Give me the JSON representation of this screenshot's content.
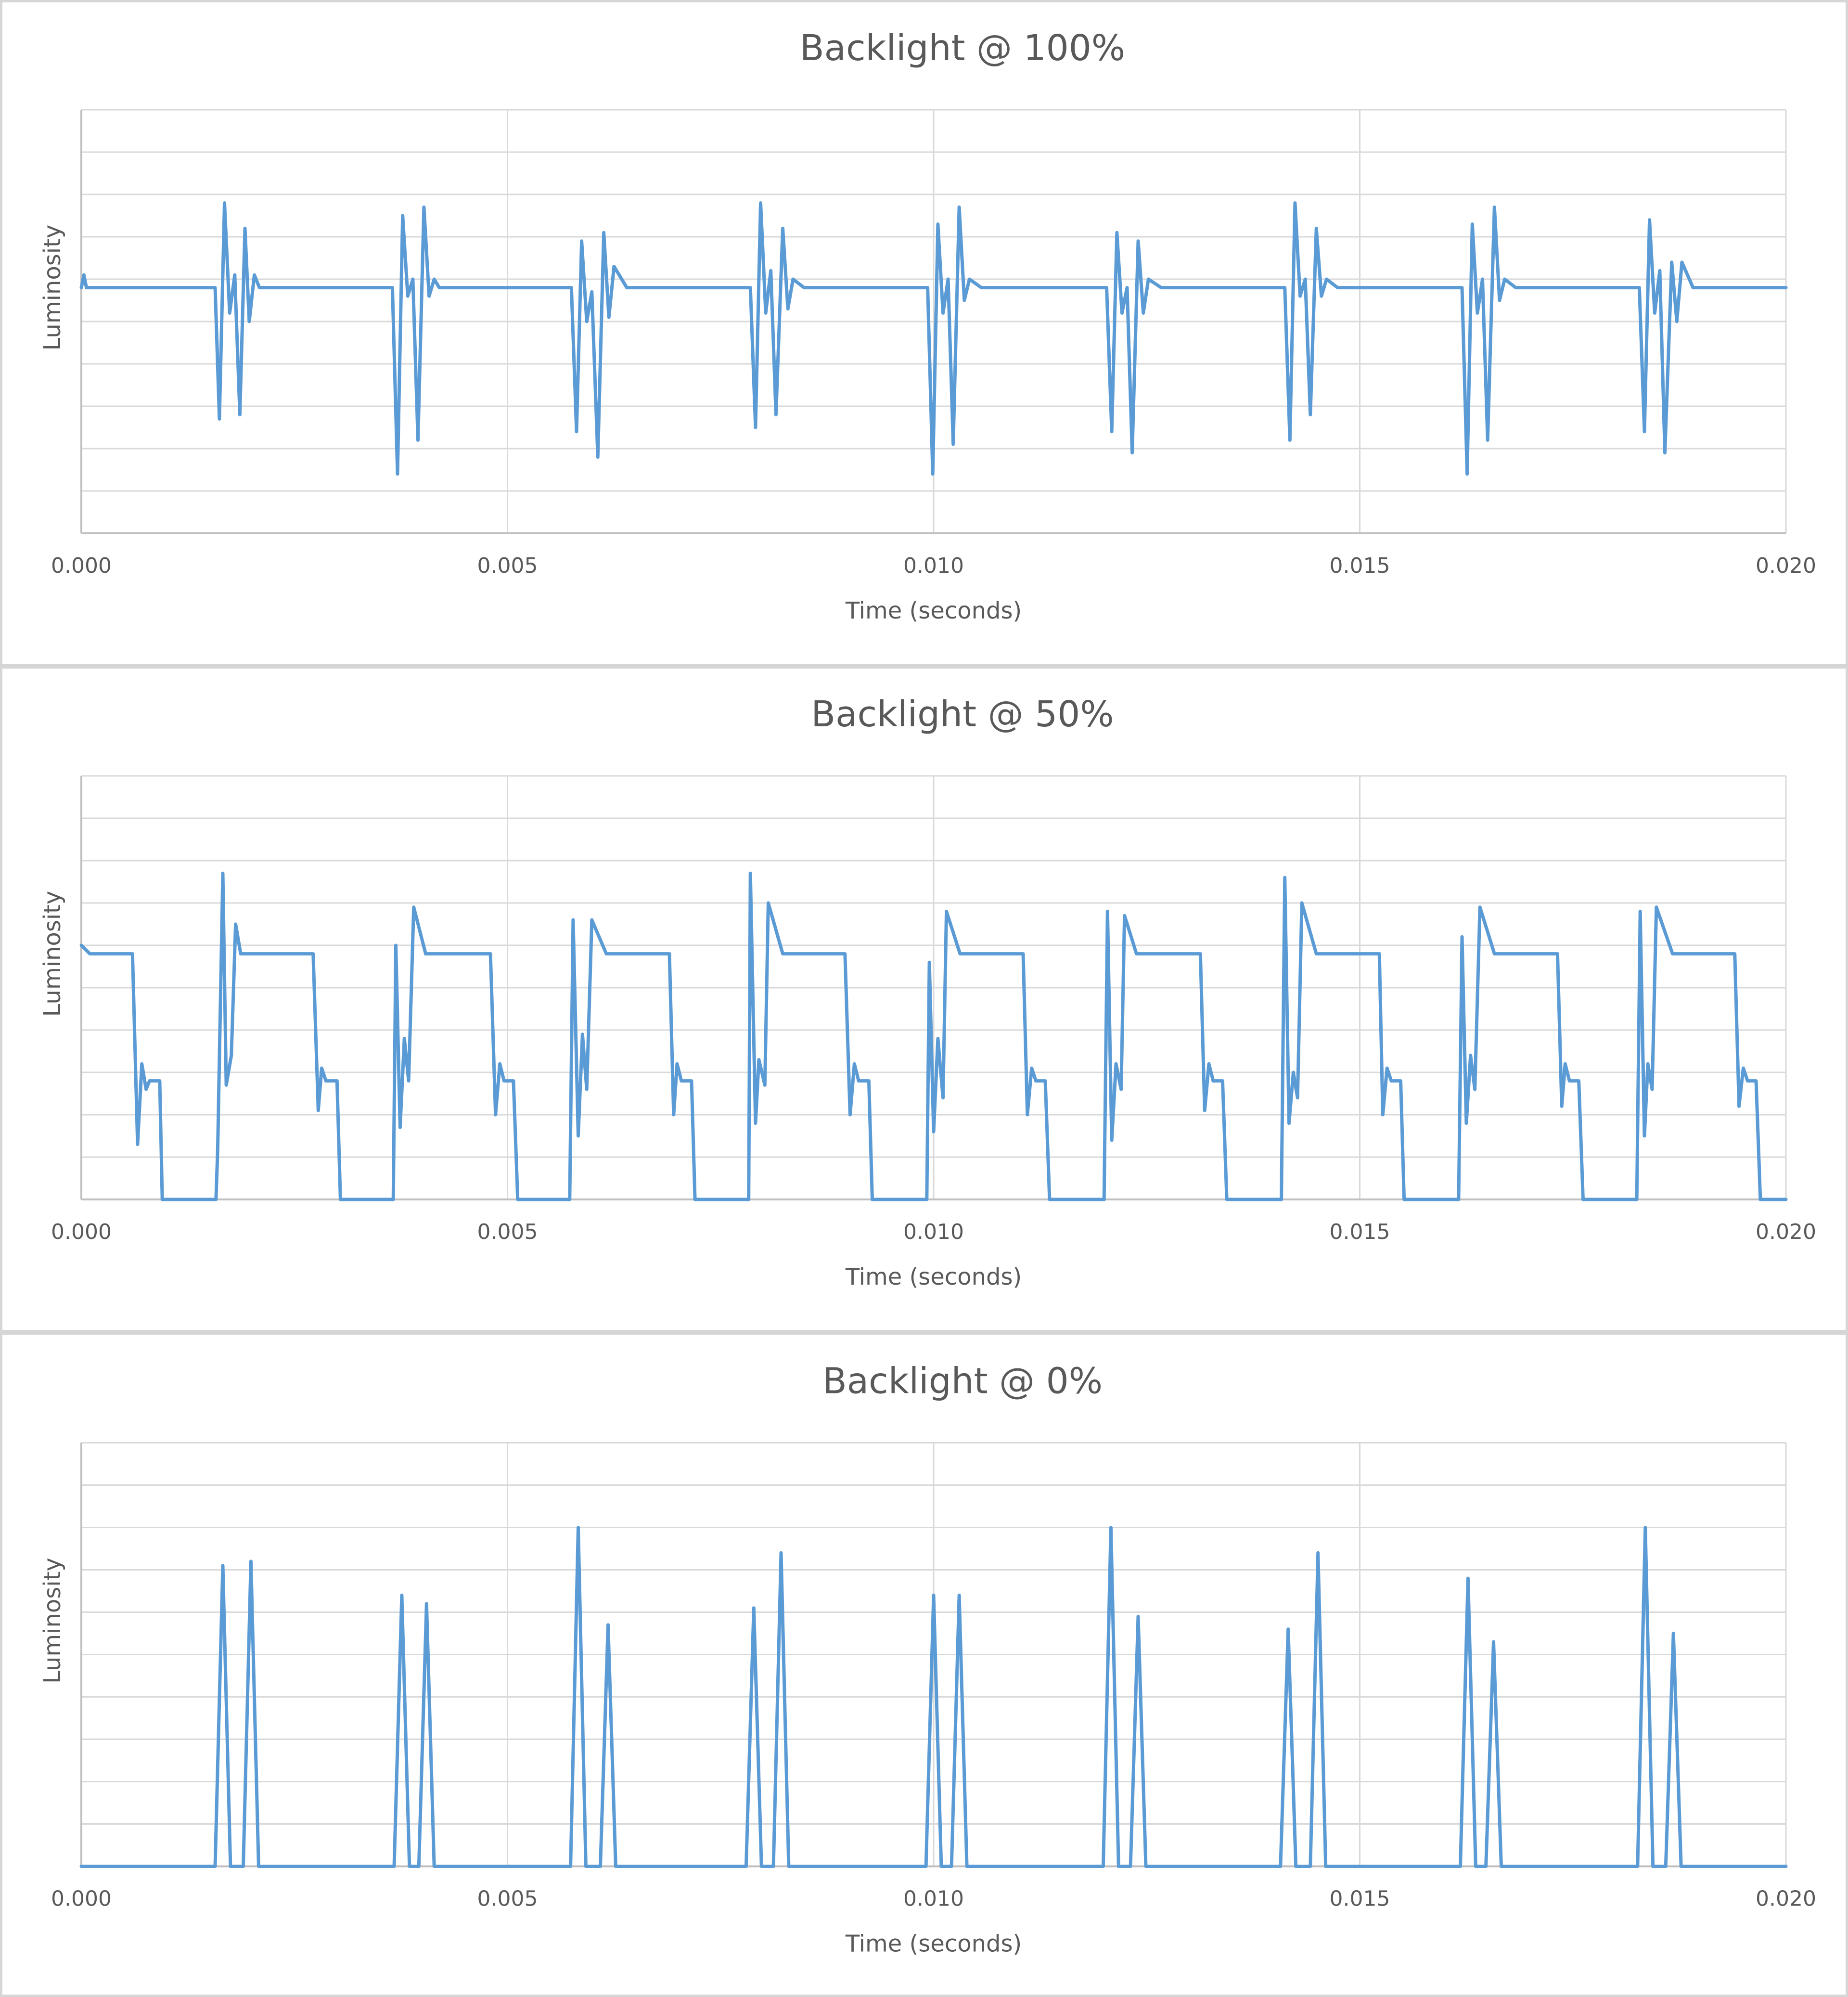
{
  "chart_data": [
    {
      "type": "line",
      "title": "Backlight @ 100%",
      "xlabel": "Time (seconds)",
      "ylabel": "Luminosity",
      "xlim": [
        0.0,
        0.02
      ],
      "ylim": [
        0,
        10
      ],
      "x_ticks": [
        "0.000",
        "0.005",
        "0.010",
        "0.015",
        "0.020"
      ],
      "grid": "on",
      "legend": "none",
      "series": [
        {
          "color": "#5b9bd5",
          "x": [
            0.0,
            3e-05,
            6e-05,
            0.00157,
            0.00162,
            0.00168,
            0.00174,
            0.0018,
            0.00186,
            0.00192,
            0.00197,
            0.00203,
            0.00209,
            0.0022,
            0.00365,
            0.00371,
            0.00377,
            0.00383,
            0.00389,
            0.00395,
            0.00402,
            0.00408,
            0.00414,
            0.0042,
            0.00434,
            0.00575,
            0.00581,
            0.00587,
            0.00593,
            0.00599,
            0.00606,
            0.00613,
            0.00619,
            0.00625,
            0.0064,
            0.00785,
            0.00791,
            0.00797,
            0.00803,
            0.00809,
            0.00815,
            0.00823,
            0.00829,
            0.00835,
            0.00848,
            0.00993,
            0.00999,
            0.01005,
            0.01011,
            0.01017,
            0.01023,
            0.0103,
            0.01036,
            0.01042,
            0.01056,
            0.01203,
            0.01209,
            0.01215,
            0.01221,
            0.01227,
            0.01233,
            0.0124,
            0.01246,
            0.01252,
            0.01267,
            0.01412,
            0.01418,
            0.01424,
            0.0143,
            0.01436,
            0.01442,
            0.01449,
            0.01455,
            0.01461,
            0.01474,
            0.0162,
            0.01626,
            0.01632,
            0.01638,
            0.01644,
            0.0165,
            0.01658,
            0.01664,
            0.0167,
            0.01683,
            0.01828,
            0.01834,
            0.0184,
            0.01846,
            0.01852,
            0.01858,
            0.01866,
            0.01872,
            0.01878,
            0.01891,
            0.02
          ],
          "y": [
            5.8,
            6.1,
            5.8,
            5.8,
            2.7,
            7.8,
            5.2,
            6.1,
            2.8,
            7.2,
            5.0,
            6.1,
            5.8,
            5.8,
            5.8,
            1.4,
            7.5,
            5.6,
            6.0,
            2.2,
            7.7,
            5.6,
            6.0,
            5.8,
            5.8,
            5.8,
            2.4,
            6.9,
            5.0,
            5.7,
            1.8,
            7.1,
            5.1,
            6.3,
            5.8,
            5.8,
            2.5,
            7.8,
            5.2,
            6.2,
            2.8,
            7.2,
            5.3,
            6.0,
            5.8,
            5.8,
            1.4,
            7.3,
            5.2,
            6.0,
            2.1,
            7.7,
            5.5,
            6.0,
            5.8,
            5.8,
            2.4,
            7.1,
            5.2,
            5.8,
            1.9,
            6.9,
            5.2,
            6.0,
            5.8,
            5.8,
            2.2,
            7.8,
            5.6,
            6.0,
            2.8,
            7.2,
            5.6,
            6.0,
            5.8,
            5.8,
            1.4,
            7.3,
            5.2,
            6.0,
            2.2,
            7.7,
            5.5,
            6.0,
            5.8,
            5.8,
            2.4,
            7.4,
            5.2,
            6.2,
            1.9,
            6.4,
            5.0,
            6.4,
            5.8,
            5.8
          ]
        }
      ]
    },
    {
      "type": "line",
      "title": "Backlight @ 50%",
      "xlabel": "Time (seconds)",
      "ylabel": "Luminosity",
      "xlim": [
        0.0,
        0.02
      ],
      "ylim": [
        0,
        10
      ],
      "x_ticks": [
        "0.000",
        "0.005",
        "0.010",
        "0.015",
        "0.020"
      ],
      "grid": "on",
      "legend": "none",
      "series": [
        {
          "color": "#5b9bd5",
          "x": [
            0.0,
            0.0001,
            0.0006,
            0.00066,
            0.00071,
            0.00076,
            0.0008,
            0.00092,
            0.00095,
            0.001,
            0.00158,
            0.0016,
            0.00166,
            0.0017,
            0.00176,
            0.00181,
            0.00187,
            0.00194,
            0.00198,
            0.00205,
            0.00214,
            0.00272,
            0.00278,
            0.00282,
            0.00287,
            0.00293,
            0.003,
            0.00304,
            0.0031,
            0.00366,
            0.00369,
            0.00374,
            0.00379,
            0.00384,
            0.0039,
            0.00404,
            0.00409,
            0.00414,
            0.0042,
            0.0048,
            0.00486,
            0.00491,
            0.00496,
            0.00501,
            0.00507,
            0.00512,
            0.00517,
            0.00573,
            0.00577,
            0.00583,
            0.00588,
            0.00593,
            0.00599,
            0.00616,
            0.0062,
            0.00625,
            0.00632,
            0.0069,
            0.00695,
            0.00699,
            0.00704,
            0.00709,
            0.00716,
            0.0072,
            0.00726,
            0.00783,
            0.00785,
            0.00791,
            0.00795,
            0.00802,
            0.00806,
            0.00823,
            0.00827,
            0.00832,
            0.00838,
            0.00896,
            0.00902,
            0.00907,
            0.00912,
            0.00917,
            0.00924,
            0.00928,
            0.00933,
            0.00992,
            0.00995,
            0.01,
            0.01005,
            0.01011,
            0.01015,
            0.01031,
            0.01035,
            0.0104,
            0.01047,
            0.01105,
            0.0111,
            0.01115,
            0.0112,
            0.01125,
            0.01131,
            0.01136,
            0.01141,
            0.012,
            0.01204,
            0.01209,
            0.01214,
            0.0122,
            0.01224,
            0.01238,
            0.01242,
            0.01247,
            0.01253,
            0.01313,
            0.01318,
            0.01323,
            0.01328,
            0.01333,
            0.01339,
            0.01344,
            0.01349,
            0.01408,
            0.01412,
            0.01417,
            0.01422,
            0.01427,
            0.01432,
            0.01449,
            0.01453,
            0.01459,
            0.01466,
            0.01523,
            0.01527,
            0.01532,
            0.01537,
            0.01542,
            0.01548,
            0.01552,
            0.01557,
            0.01616,
            0.0162,
            0.01625,
            0.0163,
            0.01635,
            0.01641,
            0.01658,
            0.01662,
            0.01667,
            0.01674,
            0.01732,
            0.01737,
            0.01741,
            0.01746,
            0.01751,
            0.01757,
            0.01762,
            0.01767,
            0.01825,
            0.01829,
            0.01834,
            0.01838,
            0.01843,
            0.01848,
            0.01867,
            0.01871,
            0.01876,
            0.01882,
            0.0194,
            0.01945,
            0.0195,
            0.01955,
            0.0196,
            0.01965,
            0.0197,
            0.01975,
            0.02
          ],
          "y": [
            6.0,
            5.8,
            5.8,
            1.3,
            3.2,
            2.6,
            2.8,
            2.8,
            0.0,
            0.0,
            0.0,
            1.2,
            7.7,
            2.7,
            3.4,
            6.5,
            5.8,
            5.8,
            5.8,
            5.8,
            5.8,
            5.8,
            2.1,
            3.1,
            2.8,
            2.8,
            2.8,
            0.0,
            0.0,
            0.0,
            6.0,
            1.7,
            3.8,
            2.8,
            6.9,
            5.8,
            5.8,
            5.8,
            5.8,
            5.8,
            2.0,
            3.2,
            2.8,
            2.8,
            2.8,
            0.0,
            0.0,
            0.0,
            6.6,
            1.5,
            3.9,
            2.6,
            6.6,
            5.8,
            5.8,
            5.8,
            5.8,
            5.8,
            2.0,
            3.2,
            2.8,
            2.8,
            2.8,
            0.0,
            0.0,
            0.0,
            7.7,
            1.8,
            3.3,
            2.7,
            7.0,
            5.8,
            5.8,
            5.8,
            5.8,
            5.8,
            2.0,
            3.2,
            2.8,
            2.8,
            2.8,
            0.0,
            0.0,
            0.0,
            5.6,
            1.6,
            3.8,
            2.4,
            6.8,
            5.8,
            5.8,
            5.8,
            5.8,
            5.8,
            2.0,
            3.1,
            2.8,
            2.8,
            2.8,
            0.0,
            0.0,
            0.0,
            6.8,
            1.4,
            3.2,
            2.6,
            6.7,
            5.8,
            5.8,
            5.8,
            5.8,
            5.8,
            2.1,
            3.2,
            2.8,
            2.8,
            2.8,
            0.0,
            0.0,
            0.0,
            7.6,
            1.8,
            3.0,
            2.4,
            7.0,
            5.8,
            5.8,
            5.8,
            5.8,
            5.8,
            2.0,
            3.1,
            2.8,
            2.8,
            2.8,
            0.0,
            0.0,
            0.0,
            6.2,
            1.8,
            3.4,
            2.6,
            6.9,
            5.8,
            5.8,
            5.8,
            5.8,
            5.8,
            2.2,
            3.2,
            2.8,
            2.8,
            2.8,
            0.0,
            0.0,
            0.0,
            6.8,
            1.5,
            3.2,
            2.6,
            6.9,
            5.8,
            5.8,
            5.8,
            5.8,
            5.8,
            2.2,
            3.1,
            2.8,
            2.8,
            2.8,
            0.0,
            0.0,
            0.0
          ]
        }
      ]
    },
    {
      "type": "line",
      "title": "Backlight @ 0%",
      "xlabel": "Time (seconds)",
      "ylabel": "Luminosity",
      "xlim": [
        0.0,
        0.02
      ],
      "ylim": [
        0,
        10
      ],
      "x_ticks": [
        "0.000",
        "0.005",
        "0.010",
        "0.015",
        "0.020"
      ],
      "grid": "on",
      "legend": "none",
      "series": [
        {
          "color": "#5b9bd5",
          "x": [
            0.0,
            0.00157,
            0.00166,
            0.00175,
            0.0019,
            0.00199,
            0.00208,
            0.00367,
            0.00376,
            0.00385,
            0.00396,
            0.00405,
            0.00414,
            0.00574,
            0.00583,
            0.00592,
            0.00609,
            0.00618,
            0.00627,
            0.0078,
            0.00789,
            0.00798,
            0.00812,
            0.00821,
            0.0083,
            0.00991,
            0.01,
            0.01009,
            0.01021,
            0.0103,
            0.01039,
            0.01199,
            0.01208,
            0.01217,
            0.01231,
            0.0124,
            0.01249,
            0.01407,
            0.01416,
            0.01425,
            0.01442,
            0.01451,
            0.0146,
            0.01618,
            0.01627,
            0.01636,
            0.01648,
            0.01657,
            0.01666,
            0.01826,
            0.01835,
            0.01844,
            0.01859,
            0.01868,
            0.01877,
            0.02
          ],
          "y": [
            0.0,
            0.0,
            7.1,
            0.0,
            0.0,
            7.2,
            0.0,
            0.0,
            6.4,
            0.0,
            0.0,
            6.2,
            0.0,
            0.0,
            8.0,
            0.0,
            0.0,
            5.7,
            0.0,
            0.0,
            6.1,
            0.0,
            0.0,
            7.4,
            0.0,
            0.0,
            6.4,
            0.0,
            0.0,
            6.4,
            0.0,
            0.0,
            8.0,
            0.0,
            0.0,
            5.9,
            0.0,
            0.0,
            5.6,
            0.0,
            0.0,
            7.4,
            0.0,
            0.0,
            6.8,
            0.0,
            0.0,
            5.3,
            0.0,
            0.0,
            8.0,
            0.0,
            0.0,
            5.5,
            0.0,
            0.0
          ]
        }
      ]
    }
  ]
}
